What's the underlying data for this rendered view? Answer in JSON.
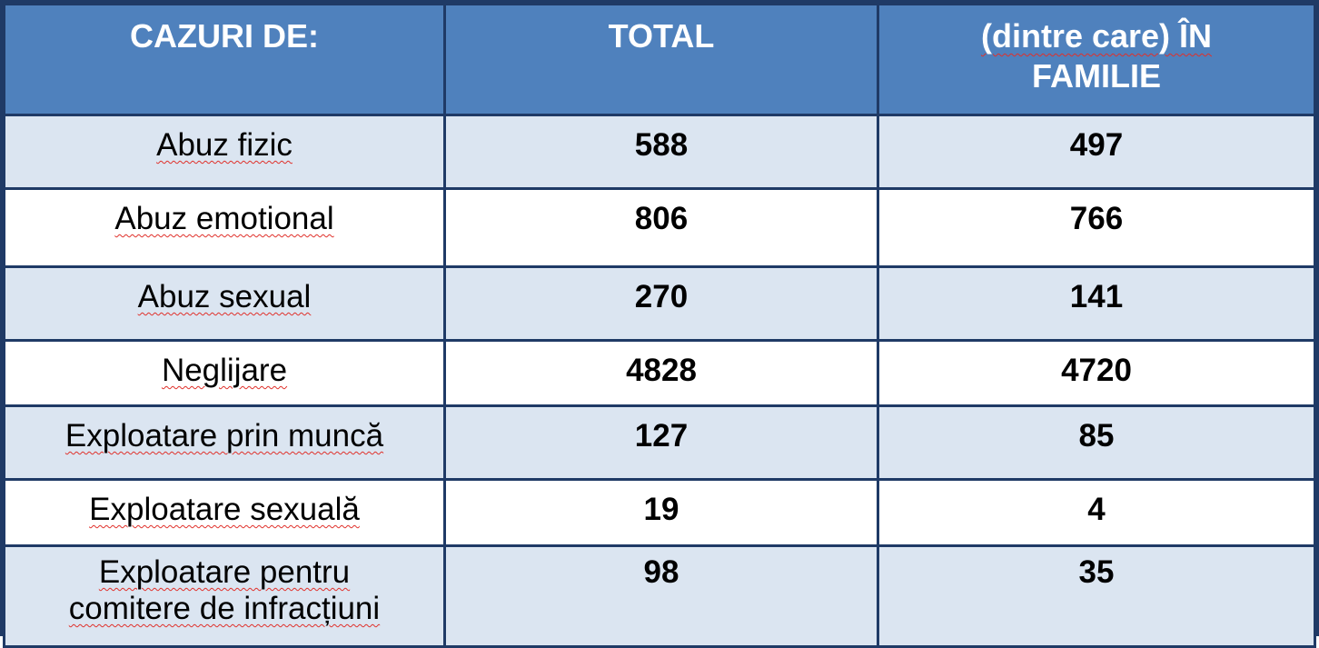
{
  "table": {
    "headers": [
      "CAZURI DE:",
      "TOTAL",
      "(dintre care) ÎN FAMILIE"
    ],
    "header_family_line1": "(dintre care) ÎN",
    "header_family_line2": "FAMILIE",
    "rows": [
      {
        "label": "Abuz fizic",
        "total": "588",
        "family": "497"
      },
      {
        "label": "Abuz emotional",
        "total": "806",
        "family": "766"
      },
      {
        "label": "Abuz sexual",
        "total": "270",
        "family": "141"
      },
      {
        "label": "Neglijare",
        "total": "4828",
        "family": "4720"
      },
      {
        "label": "Exploatare prin muncă",
        "total": "127",
        "family": "85"
      },
      {
        "label": "Exploatare sexuală",
        "total": "19",
        "family": "4"
      },
      {
        "label": "Exploatare pentru comitere de infracțiuni",
        "label_line1": "Exploatare pentru",
        "label_line2": "comitere de infracțiuni",
        "total": "98",
        "family": "35"
      }
    ]
  },
  "colors": {
    "header_bg": "#4f81bd",
    "shaded_row_bg": "#dbe5f1",
    "border": "#1f3a66",
    "spell_underline": "#e0302a"
  }
}
